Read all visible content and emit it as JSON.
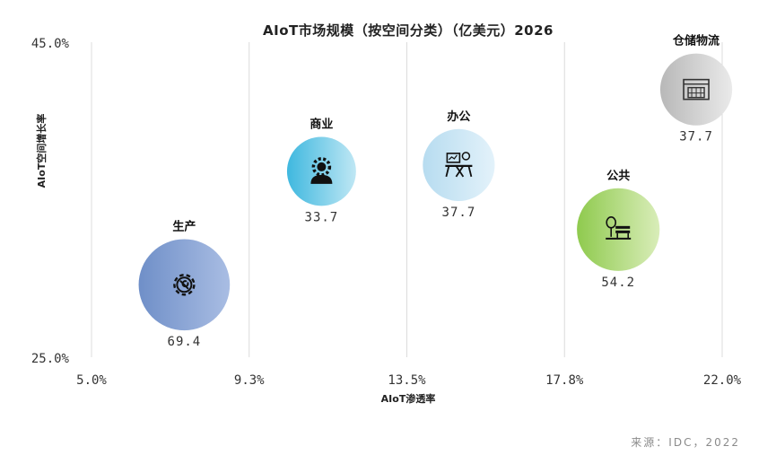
{
  "chart_data": {
    "type": "scatter",
    "title": "AIoT市场规模（按空间分类）（亿美元）2026",
    "xlabel": "AIoT渗透率",
    "ylabel": "AIoT空间增长率",
    "x_ticks": [
      "5.0%",
      "9.3%",
      "13.5%",
      "17.8%",
      "22.0%"
    ],
    "y_ticks": [
      "25.0%",
      "45.0%"
    ],
    "xlim": [
      5.0,
      22.0
    ],
    "ylim": [
      25.0,
      45.0
    ],
    "grid": "vertical",
    "points": [
      {
        "category": "生产",
        "x": 7.5,
        "y": 29.6,
        "value": 69.4,
        "value_label": "69.4",
        "color_from": "#6f8fc8",
        "color_to": "#a9bde3",
        "icon": "gear-wrench-icon"
      },
      {
        "category": "商业",
        "x": 11.2,
        "y": 36.8,
        "value": 33.7,
        "value_label": "33.7",
        "color_from": "#3fb8df",
        "color_to": "#bfe7f4",
        "icon": "person-gear-icon"
      },
      {
        "category": "办公",
        "x": 14.9,
        "y": 37.2,
        "value": 37.7,
        "value_label": "37.7",
        "color_from": "#b7dcf0",
        "color_to": "#e3f2fa",
        "icon": "desk-presentation-icon"
      },
      {
        "category": "公共",
        "x": 19.2,
        "y": 33.1,
        "value": 54.2,
        "value_label": "54.2",
        "color_from": "#8fca4e",
        "color_to": "#d9edb9",
        "icon": "park-bench-icon"
      },
      {
        "category": "仓储物流",
        "x": 21.3,
        "y": 42.0,
        "value": 37.7,
        "value_label": "37.7",
        "color_from": "#b8b8b8",
        "color_to": "#eaeaea",
        "icon": "warehouse-icon"
      }
    ]
  },
  "source": "来源：IDC，2022"
}
